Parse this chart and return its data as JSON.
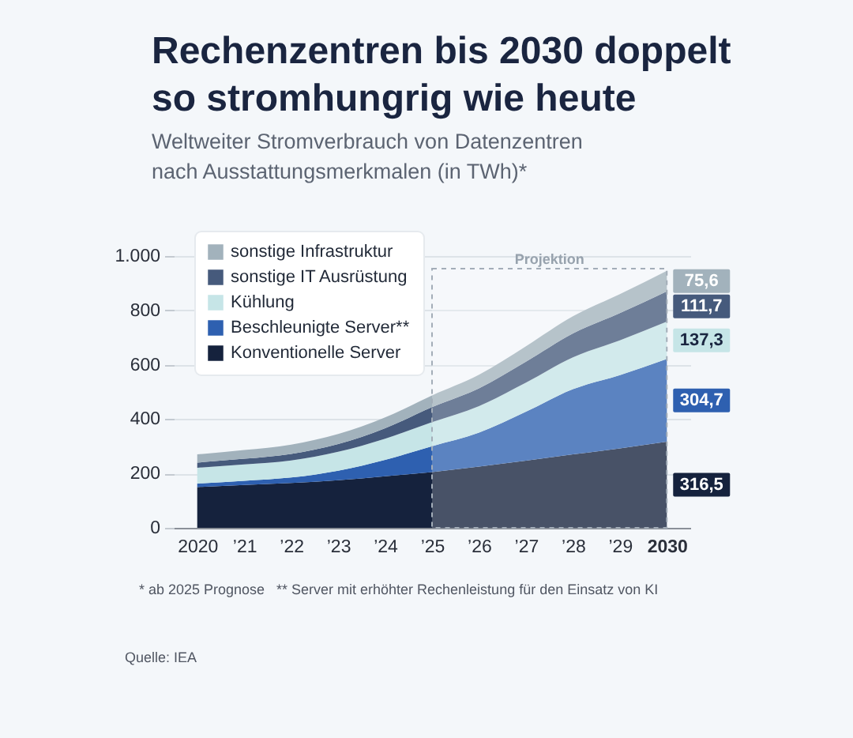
{
  "chart_data": {
    "type": "area",
    "title": "Rechenzentren bis 2030 doppelt\nso stromhungrig wie heute",
    "subtitle": "Weltweiter Stromverbrauch von Datenzentren\nnach Ausstattungsmerkmalen (in TWh)*",
    "x": [
      2020,
      2021,
      2022,
      2023,
      2024,
      2025,
      2026,
      2027,
      2028,
      2029,
      2030
    ],
    "xlim": [
      2019.5,
      2030.5
    ],
    "xticks": [
      2020,
      {
        "value": 2021,
        "label": "’21"
      },
      {
        "value": 2022,
        "label": "’22"
      },
      {
        "value": 2023,
        "label": "’23"
      },
      {
        "value": 2024,
        "label": "’24"
      },
      {
        "value": 2025,
        "label": "’25"
      },
      {
        "value": 2026,
        "label": "’26"
      },
      {
        "value": 2027,
        "label": "’27"
      },
      {
        "value": 2028,
        "label": "’28"
      },
      {
        "value": 2029,
        "label": "’29"
      },
      2030
    ],
    "ylim": [
      0,
      1000
    ],
    "yticks": [
      0,
      200,
      400,
      600,
      800,
      {
        "value": 1000,
        "label": "1.000"
      }
    ],
    "grid": "y",
    "legend": "top left",
    "stacked": true,
    "series": [
      {
        "name": "Konventionelle Server",
        "color": "#15223d",
        "values": [
          150,
          158,
          165,
          175,
          190,
          205,
          225,
          247,
          270,
          292,
          316.5
        ],
        "value_labels": [
          null,
          null,
          null,
          null,
          null,
          null,
          null,
          null,
          null,
          null,
          "316,5"
        ]
      },
      {
        "name": "Beschleunigte Server**",
        "color": "#2e60b0",
        "values": [
          13,
          15,
          20,
          35,
          60,
          95,
          125,
          180,
          240,
          270,
          304.7
        ],
        "value_labels": [
          null,
          null,
          null,
          null,
          null,
          null,
          null,
          null,
          null,
          null,
          "304,7"
        ]
      },
      {
        "name": "Kühlung",
        "color": "#c6e5e7",
        "values": [
          58,
          60,
          63,
          70,
          78,
          89,
          98,
          107,
          117,
          128,
          137.3
        ],
        "value_labels": [
          null,
          null,
          null,
          null,
          null,
          null,
          null,
          null,
          null,
          null,
          "137,3"
        ]
      },
      {
        "name": "sonstige IT Ausrüstung",
        "color": "#465a7c",
        "values": [
          19,
          21,
          24,
          28,
          38,
          55,
          65,
          77,
          88,
          100,
          111.7
        ],
        "value_labels": [
          null,
          null,
          null,
          null,
          null,
          null,
          null,
          null,
          null,
          null,
          "111,7"
        ]
      },
      {
        "name": "sonstige Infrastruktur",
        "color": "#a2b2bc",
        "values": [
          30,
          32,
          34,
          37,
          40,
          43,
          50,
          57,
          63,
          70,
          75.6
        ],
        "value_labels": [
          null,
          null,
          null,
          null,
          null,
          null,
          null,
          null,
          null,
          null,
          "75,6"
        ]
      }
    ],
    "bands": [
      {
        "axis": "x",
        "from": 2025,
        "to": 2030,
        "label": "Projektion"
      }
    ],
    "annotations": [
      "* ab 2025 Prognose",
      "** Server mit erhöhter Rechenleistung für den Einsatz von KI",
      "Quelle: IEA"
    ]
  }
}
